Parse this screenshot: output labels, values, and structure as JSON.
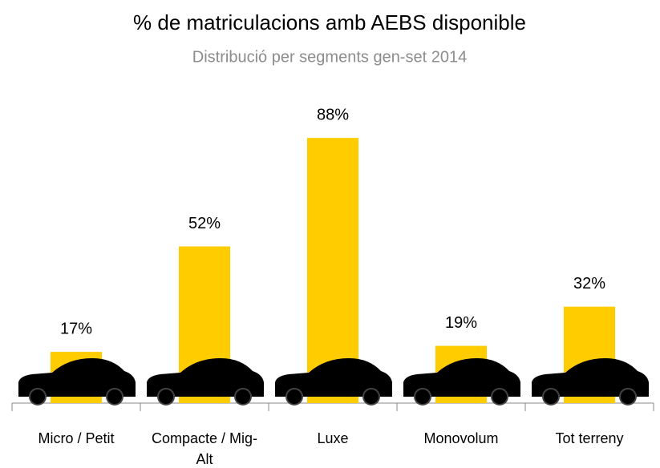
{
  "chart_data": {
    "type": "bar",
    "title": "% de matriculacions amb AEBS disponible",
    "subtitle": "Distribució per segments gen-set 2014",
    "categories": [
      "Micro / Petit",
      "Compacte / Mig-Alt",
      "Luxe",
      "Monovolum",
      "Tot terreny"
    ],
    "values": [
      17,
      52,
      88,
      19,
      32
    ],
    "value_labels": [
      "17%",
      "52%",
      "88%",
      "19%",
      "32%"
    ],
    "color": "#FFCC00"
  }
}
